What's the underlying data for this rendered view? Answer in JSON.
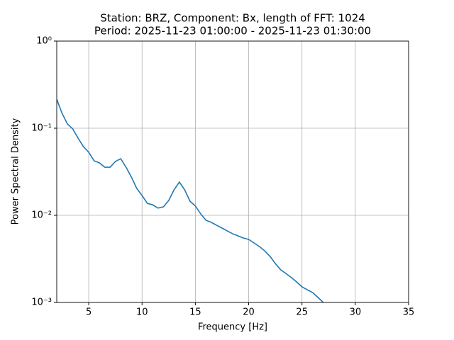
{
  "chart_data": {
    "type": "line",
    "title": "Station: BRZ, Component: Bx, length of FFT: 1024",
    "subtitle": "Period: 2025-11-23 01:00:00 - 2025-11-23 01:30:00",
    "x_label": "Frequency [Hz]",
    "y_label": "Power Spectral Density",
    "x": [
      2,
      2.5,
      3,
      3.5,
      4,
      4.5,
      5,
      5.5,
      6,
      6.5,
      7,
      7.5,
      8,
      8.5,
      9,
      9.5,
      10,
      10.5,
      11,
      11.5,
      12,
      12.5,
      13,
      13.5,
      14,
      14.5,
      15,
      15.5,
      16,
      16.5,
      17,
      17.5,
      18,
      18.5,
      19,
      19.5,
      20,
      20.5,
      21,
      21.5,
      22,
      22.5,
      23,
      23.5,
      24,
      24.5,
      25,
      25.5,
      26,
      26.5,
      27
    ],
    "series": [
      {
        "color": "#1f77b4",
        "values": [
          0.215,
          0.148,
          0.112,
          0.0982,
          0.0769,
          0.0615,
          0.0529,
          0.0423,
          0.04,
          0.0357,
          0.0357,
          0.0415,
          0.0447,
          0.0357,
          0.0275,
          0.0204,
          0.0169,
          0.0137,
          0.0132,
          0.0121,
          0.0125,
          0.0148,
          0.0196,
          0.0241,
          0.0196,
          0.0145,
          0.0128,
          0.0104,
          0.00877,
          0.00829,
          0.00769,
          0.00714,
          0.00662,
          0.00614,
          0.00581,
          0.00549,
          0.00529,
          0.00482,
          0.00439,
          0.00392,
          0.00338,
          0.0028,
          0.00237,
          0.00215,
          0.00193,
          0.00172,
          0.00151,
          0.0014,
          0.0013,
          0.00114,
          0.001
        ]
      }
    ],
    "xlim": [
      2,
      35
    ],
    "xticks": [
      5,
      10,
      15,
      20,
      25,
      30,
      35
    ],
    "ylim": [
      0.001,
      1
    ],
    "yticks": [
      {
        "value": 0.001,
        "label": "10⁻³"
      },
      {
        "value": 0.01,
        "label": "10⁻²"
      },
      {
        "value": 0.1,
        "label": "10⁻¹"
      },
      {
        "value": 1,
        "label": "10⁰"
      }
    ],
    "y_scale": "log",
    "grid": true
  }
}
